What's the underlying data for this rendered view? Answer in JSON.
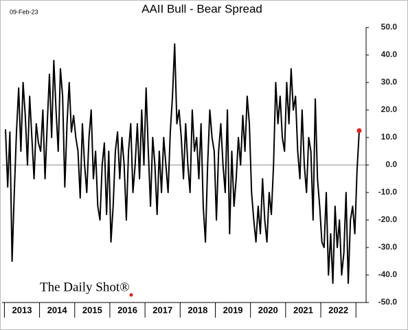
{
  "chart_data": {
    "type": "line",
    "title": "AAII Bull - Bear Spread",
    "date_stamp": "09-Feb-23",
    "watermark": "The Daily Shot®",
    "categories": [
      "2013",
      null,
      null,
      null,
      null,
      null,
      null,
      null,
      null,
      null,
      null,
      null,
      null,
      null,
      null,
      null,
      "2014",
      null,
      null,
      null,
      null,
      null,
      null,
      null,
      null,
      null,
      null,
      null,
      null,
      null,
      null,
      null,
      "2015",
      null,
      null,
      null,
      null,
      null,
      null,
      null,
      null,
      null,
      null,
      null,
      null,
      null,
      null,
      null,
      "2016",
      null,
      null,
      null,
      null,
      null,
      null,
      null,
      null,
      null,
      null,
      null,
      null,
      null,
      null,
      null,
      "2017",
      null,
      null,
      null,
      null,
      null,
      null,
      null,
      null,
      null,
      null,
      null,
      null,
      null,
      null,
      null,
      "2018",
      null,
      null,
      null,
      null,
      null,
      null,
      null,
      null,
      null,
      null,
      null,
      null,
      null,
      null,
      null,
      "2019",
      null,
      null,
      null,
      null,
      null,
      null,
      null,
      null,
      null,
      null,
      null,
      null,
      null,
      null,
      null,
      "2020",
      null,
      null,
      null,
      null,
      null,
      null,
      null,
      null,
      null,
      null,
      null,
      null,
      null,
      null,
      null,
      "2021",
      null,
      null,
      null,
      null,
      null,
      null,
      null,
      null,
      null,
      null,
      null,
      null,
      null,
      null,
      null,
      "2022",
      null,
      null,
      null,
      null,
      null,
      null,
      null,
      null,
      null,
      null,
      null,
      null,
      null,
      null,
      null,
      null,
      null
    ],
    "values": [
      13,
      -8,
      12,
      -35,
      -10,
      12,
      28,
      5,
      30,
      18,
      0,
      25,
      10,
      -5,
      15,
      8,
      5,
      20,
      -5,
      15,
      33,
      10,
      38,
      20,
      5,
      35,
      25,
      -8,
      15,
      30,
      12,
      18,
      10,
      5,
      -12,
      15,
      0,
      -10,
      10,
      20,
      -5,
      5,
      -15,
      -20,
      0,
      8,
      -18,
      5,
      -28,
      -15,
      5,
      12,
      -5,
      10,
      0,
      -20,
      5,
      15,
      -10,
      0,
      15,
      -5,
      20,
      0,
      28,
      5,
      -15,
      10,
      0,
      -18,
      5,
      -10,
      10,
      0,
      -10,
      12,
      25,
      44,
      15,
      20,
      10,
      -5,
      15,
      0,
      -10,
      20,
      5,
      10,
      -5,
      15,
      -15,
      -28,
      0,
      20,
      10,
      5,
      -20,
      5,
      15,
      0,
      -10,
      20,
      -25,
      5,
      -15,
      -5,
      10,
      0,
      18,
      5,
      25,
      15,
      -10,
      -20,
      -28,
      -15,
      -25,
      -5,
      -20,
      -28,
      -10,
      -18,
      0,
      30,
      15,
      25,
      10,
      5,
      30,
      15,
      35,
      20,
      25,
      5,
      -5,
      20,
      0,
      -10,
      10,
      5,
      -20,
      24,
      -5,
      -15,
      -28,
      -30,
      -10,
      -40,
      -25,
      -43,
      -15,
      -30,
      -20,
      -40,
      -32,
      -10,
      -43,
      -20,
      -15,
      -25,
      -2,
      12.5
    ],
    "color": "#000000",
    "last_point_color": "#e02020",
    "ylim": [
      -50,
      50
    ],
    "yticks": [
      {
        "value": -50,
        "label": "-50.0"
      },
      {
        "value": -40,
        "label": "-40.0"
      },
      {
        "value": -30,
        "label": "-30.0"
      },
      {
        "value": -20,
        "label": "-20.0"
      },
      {
        "value": -10,
        "label": "-10.0"
      },
      {
        "value": 0,
        "label": "0.0"
      },
      {
        "value": 10,
        "label": "10.0"
      },
      {
        "value": 20,
        "label": "20.0"
      },
      {
        "value": 30,
        "label": "30.0"
      },
      {
        "value": 40,
        "label": "40.0"
      },
      {
        "value": 50,
        "label": "50.0"
      }
    ],
    "zero_line": true
  }
}
